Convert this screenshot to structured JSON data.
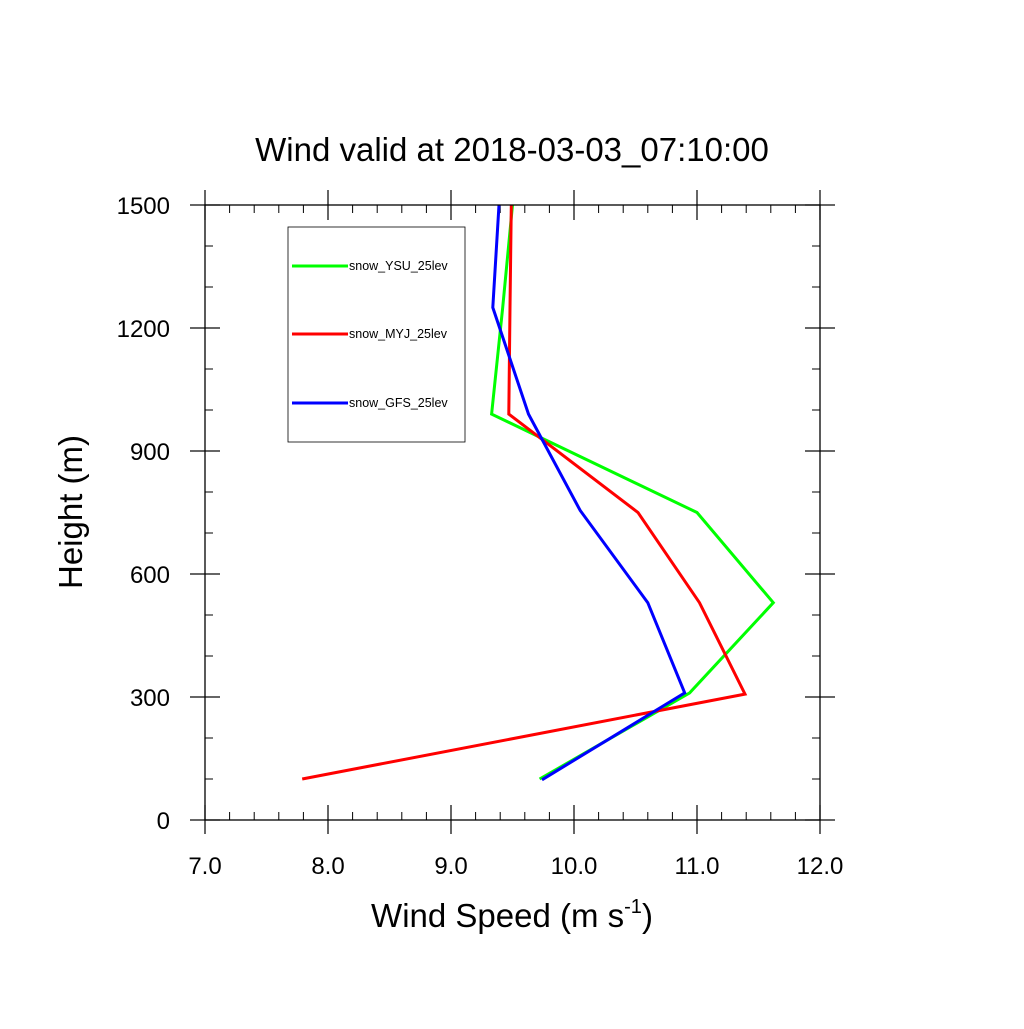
{
  "chart_data": {
    "type": "line",
    "title": "Wind valid at 2018-03-03_07:10:00",
    "xlabel": "Wind Speed (m s",
    "xlabel_superscript": "-1",
    "xlabel_suffix": ")",
    "ylabel": "Height (m)",
    "xlim": [
      7.0,
      12.0
    ],
    "ylim": [
      0,
      1500
    ],
    "x_ticks": [
      "7.0",
      "8.0",
      "9.0",
      "10.0",
      "11.0",
      "12.0"
    ],
    "y_ticks": [
      "0",
      "300",
      "600",
      "900",
      "1200",
      "1500"
    ],
    "x_minor_step": 0.2,
    "y_minor_step": 100,
    "grid": false,
    "legend_position": "top-left",
    "series": [
      {
        "name": "snow_YSU_25lev",
        "color": "#00ff00",
        "points": [
          [
            9.72,
            100
          ],
          [
            10.94,
            310
          ],
          [
            11.62,
            530
          ],
          [
            11.0,
            750
          ],
          [
            9.33,
            990
          ],
          [
            9.42,
            1250
          ],
          [
            9.5,
            1500
          ]
        ]
      },
      {
        "name": "snow_MYJ_25lev",
        "color": "#ff0000",
        "points": [
          [
            7.79,
            100
          ],
          [
            11.39,
            307
          ],
          [
            11.02,
            530
          ],
          [
            10.52,
            750
          ],
          [
            9.47,
            990
          ],
          [
            9.48,
            1250
          ],
          [
            9.49,
            1500
          ]
        ]
      },
      {
        "name": "snow_GFS_25lev",
        "color": "#0000ff",
        "points": [
          [
            9.74,
            98
          ],
          [
            10.9,
            310
          ],
          [
            10.6,
            530
          ],
          [
            10.05,
            755
          ],
          [
            9.63,
            990
          ],
          [
            9.34,
            1250
          ],
          [
            9.39,
            1500
          ]
        ]
      }
    ]
  }
}
